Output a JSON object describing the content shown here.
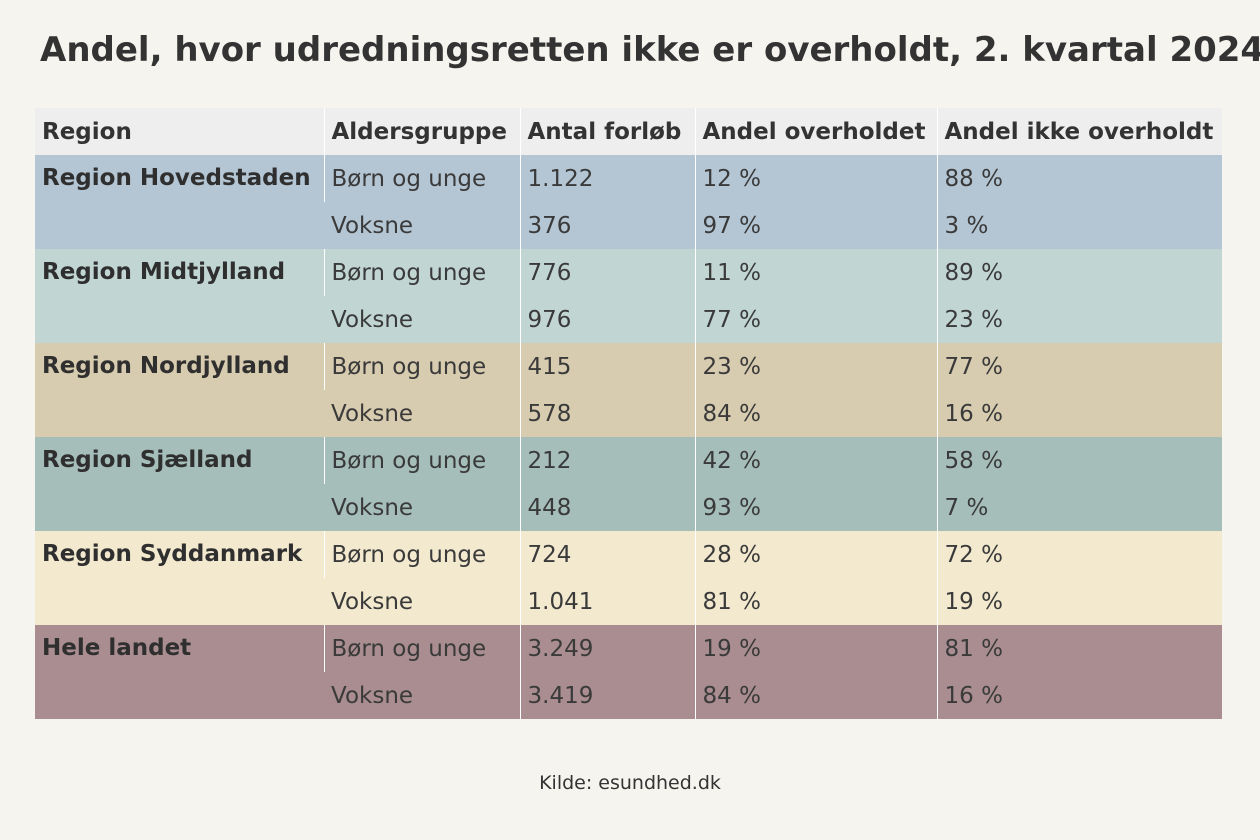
{
  "title": "Andel, hvor udredningsretten ikke er overholdt, 2. kvartal 2024",
  "source": "Kilde: esundhed.dk",
  "chart_data": {
    "type": "table",
    "columns": [
      "Region",
      "Aldersgruppe",
      "Antal forløb",
      "Andel overholdet",
      "Andel ikke overholdt"
    ],
    "groups": [
      {
        "region": "Region Hovedstaden",
        "color": "#b4c6d4",
        "rows": [
          {
            "group": "Børn og unge",
            "count": "1.122",
            "met": "12 %",
            "not_met": "88 %"
          },
          {
            "group": "Voksne",
            "count": "376",
            "met": "97 %",
            "not_met": "3 %"
          }
        ]
      },
      {
        "region": "Region Midtjylland",
        "color": "#c1d6d3",
        "rows": [
          {
            "group": "Børn og unge",
            "count": "776",
            "met": "11 %",
            "not_met": "89 %"
          },
          {
            "group": "Voksne",
            "count": "976",
            "met": "77 %",
            "not_met": "23 %"
          }
        ]
      },
      {
        "region": "Region Nordjylland",
        "color": "#d8ccb0",
        "rows": [
          {
            "group": "Børn og unge",
            "count": "415",
            "met": "23 %",
            "not_met": "77 %"
          },
          {
            "group": "Voksne",
            "count": "578",
            "met": "84 %",
            "not_met": "16 %"
          }
        ]
      },
      {
        "region": "Region Sjælland",
        "color": "#a6beb9",
        "rows": [
          {
            "group": "Børn og unge",
            "count": "212",
            "met": "42 %",
            "not_met": "58 %"
          },
          {
            "group": "Voksne",
            "count": "448",
            "met": "93 %",
            "not_met": "7 %"
          }
        ]
      },
      {
        "region": "Region Syddanmark",
        "color": "#f2e9cf",
        "rows": [
          {
            "group": "Børn og unge",
            "count": "724",
            "met": "28 %",
            "not_met": "72 %"
          },
          {
            "group": "Voksne",
            "count": "1.041",
            "met": "81 %",
            "not_met": "19 %"
          }
        ]
      },
      {
        "region": "Hele landet",
        "color": "#a98d90",
        "rows": [
          {
            "group": "Børn og unge",
            "count": "3.249",
            "met": "19 %",
            "not_met": "81 %"
          },
          {
            "group": "Voksne",
            "count": "3.419",
            "met": "84 %",
            "not_met": "16 %"
          }
        ]
      }
    ]
  }
}
